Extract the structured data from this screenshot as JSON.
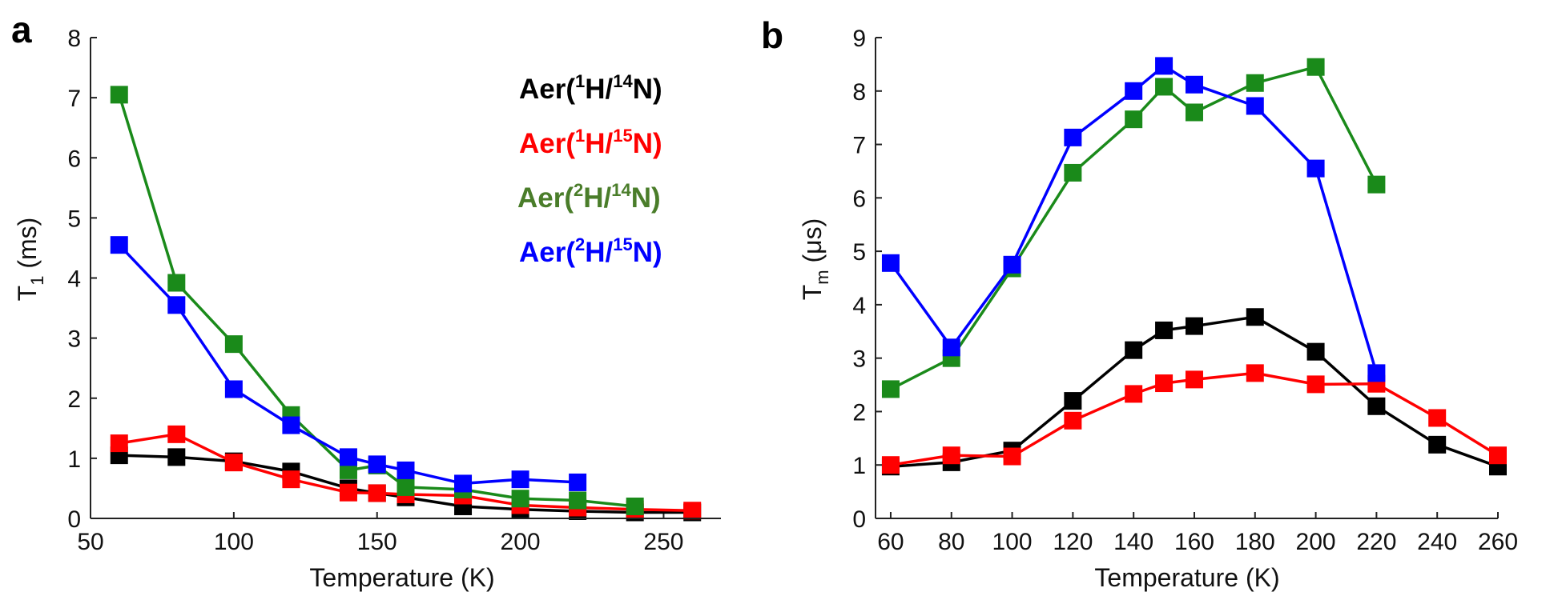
{
  "chart_data": [
    {
      "panel": "a",
      "type": "line",
      "xlabel": "Temperature (K)",
      "ylabel_main": "T",
      "ylabel_sub": "1",
      "ylabel_rest": " (ms)",
      "xlim": [
        50,
        270
      ],
      "ylim": [
        0,
        8
      ],
      "xticks": [
        50,
        100,
        150,
        200,
        250
      ],
      "yticks": [
        0,
        1,
        2,
        3,
        4,
        5,
        6,
        7,
        8
      ],
      "legend": {
        "placement": "top-right",
        "entries": [
          {
            "prefix": "Aer(",
            "iso1": "1",
            "el1": "H/",
            "iso2": "14",
            "el2": "N)",
            "color": "#000000"
          },
          {
            "prefix": "Aer(",
            "iso1": "1",
            "el1": "H/",
            "iso2": "15",
            "el2": "N)",
            "color": "#ff0000"
          },
          {
            "prefix": "Aer(",
            "iso1": "2",
            "el1": "H/",
            "iso2": "14",
            "el2": "N)",
            "color": "#4a7d2a"
          },
          {
            "prefix": "Aer(",
            "iso1": "2",
            "el1": "H/",
            "iso2": "15",
            "el2": "N)",
            "color": "#0000ff"
          }
        ]
      },
      "series": [
        {
          "name": "Aer(1H/14N)",
          "color": "#000000",
          "x": [
            60,
            80,
            100,
            120,
            140,
            150,
            160,
            180,
            200,
            220,
            240,
            260
          ],
          "y": [
            1.05,
            1.02,
            0.95,
            0.78,
            0.5,
            0.42,
            0.35,
            0.2,
            0.15,
            0.12,
            0.1,
            0.1
          ]
        },
        {
          "name": "Aer(1H/15N)",
          "color": "#ff0000",
          "x": [
            60,
            80,
            100,
            120,
            140,
            150,
            160,
            180,
            200,
            220,
            240,
            260
          ],
          "y": [
            1.25,
            1.4,
            0.93,
            0.65,
            0.43,
            0.42,
            0.4,
            0.38,
            0.22,
            0.18,
            0.15,
            0.13
          ]
        },
        {
          "name": "Aer(2H/14N)",
          "color": "#1a8a1a",
          "x": [
            60,
            80,
            100,
            120,
            140,
            150,
            160,
            180,
            200,
            220,
            240
          ],
          "y": [
            7.05,
            3.92,
            2.9,
            1.72,
            0.8,
            0.88,
            0.52,
            0.48,
            0.33,
            0.3,
            0.2
          ]
        },
        {
          "name": "Aer(2H/15N)",
          "color": "#0000ff",
          "x": [
            60,
            80,
            100,
            120,
            140,
            150,
            160,
            180,
            200,
            220
          ],
          "y": [
            4.55,
            3.55,
            2.15,
            1.55,
            1.02,
            0.9,
            0.8,
            0.58,
            0.65,
            0.6
          ]
        }
      ]
    },
    {
      "panel": "b",
      "type": "line",
      "xlabel": "Temperature (K)",
      "ylabel_main": "T",
      "ylabel_sub": "m",
      "ylabel_rest": " (μs)",
      "xlim": [
        55,
        260
      ],
      "ylim": [
        0,
        9
      ],
      "xticks": [
        60,
        80,
        100,
        120,
        140,
        160,
        180,
        200,
        220,
        240,
        260
      ],
      "yticks": [
        0,
        1,
        2,
        3,
        4,
        5,
        6,
        7,
        8,
        9
      ],
      "series": [
        {
          "name": "Aer(1H/14N)",
          "color": "#000000",
          "x": [
            60,
            80,
            100,
            120,
            140,
            150,
            160,
            180,
            200,
            220,
            240,
            260
          ],
          "y": [
            0.97,
            1.05,
            1.27,
            2.2,
            3.15,
            3.52,
            3.6,
            3.77,
            3.12,
            2.1,
            1.38,
            0.97
          ]
        },
        {
          "name": "Aer(1H/15N)",
          "color": "#ff0000",
          "x": [
            60,
            80,
            100,
            120,
            140,
            150,
            160,
            180,
            200,
            220,
            240,
            260
          ],
          "y": [
            1.0,
            1.18,
            1.16,
            1.83,
            2.33,
            2.53,
            2.6,
            2.72,
            2.51,
            2.52,
            1.88,
            1.18
          ]
        },
        {
          "name": "Aer(2H/14N)",
          "color": "#1a8a1a",
          "x": [
            60,
            80,
            100,
            120,
            140,
            150,
            160,
            180,
            200,
            220
          ],
          "y": [
            2.42,
            3.0,
            4.68,
            6.47,
            7.47,
            8.08,
            7.6,
            8.15,
            8.45,
            6.25
          ]
        },
        {
          "name": "Aer(2H/15N)",
          "color": "#0000ff",
          "x": [
            60,
            80,
            100,
            120,
            140,
            150,
            160,
            180,
            200,
            220
          ],
          "y": [
            4.78,
            3.2,
            4.75,
            7.13,
            8.0,
            8.47,
            8.12,
            7.72,
            6.55,
            2.72
          ]
        }
      ]
    }
  ]
}
